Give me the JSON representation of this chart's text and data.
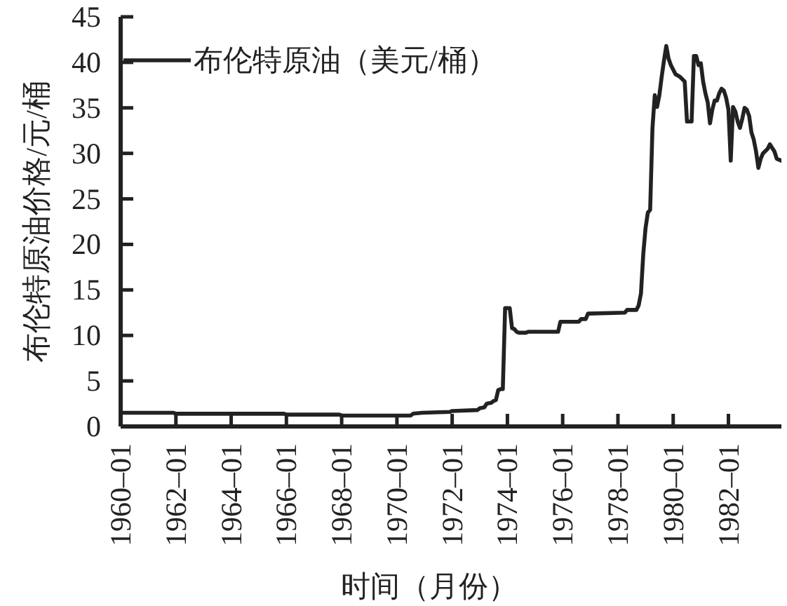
{
  "chart_data": {
    "type": "line",
    "xlabel": "时间（月份）",
    "ylabel": "布伦特原油价格/元/桶",
    "legend": "top left",
    "x": [
      "1960-01",
      "1961-12",
      "1962-01",
      "1965-12",
      "1966-01",
      "1967-12",
      "1968-01",
      "1970-07",
      "1970-08",
      "1970-12",
      "1971-12",
      "1972-01",
      "1972-12",
      "1973-01",
      "1973-03",
      "1973-04",
      "1973-06",
      "1973-07",
      "1973-08",
      "1973-09",
      "1973-10",
      "1973-11",
      "1973-12",
      "1974-01",
      "1974-02",
      "1974-03",
      "1974-04",
      "1974-05",
      "1974-06",
      "1974-09",
      "1974-10",
      "1975-11",
      "1975-12",
      "1976-08",
      "1976-09",
      "1976-11",
      "1976-12",
      "1978-04",
      "1978-05",
      "1978-09",
      "1978-10",
      "1978-11",
      "1978-12",
      "1979-01",
      "1979-02",
      "1979-03",
      "1979-04",
      "1979-05",
      "1979-06",
      "1979-07",
      "1979-08",
      "1979-09",
      "1979-10",
      "1979-11",
      "1979-12",
      "1980-02",
      "1980-04",
      "1980-06",
      "1980-07",
      "1980-09",
      "1980-10",
      "1980-11",
      "1980-12",
      "1981-01",
      "1981-02",
      "1981-03",
      "1981-04",
      "1981-05",
      "1981-06",
      "1981-07",
      "1981-08",
      "1981-09",
      "1981-10",
      "1981-11",
      "1981-12",
      "1982-01",
      "1982-02",
      "1982-03",
      "1982-04",
      "1982-05",
      "1982-06",
      "1982-07",
      "1982-08",
      "1982-09",
      "1982-10",
      "1982-11",
      "1982-12",
      "1983-01",
      "1983-02",
      "1983-03",
      "1983-04",
      "1983-06",
      "1983-07",
      "1983-09",
      "1983-10",
      "1983-12"
    ],
    "series": [
      {
        "name": "布伦特原油（美元/桶）",
        "color": "#222222",
        "values": [
          1.5,
          1.5,
          1.4,
          1.4,
          1.3,
          1.3,
          1.2,
          1.2,
          1.4,
          1.5,
          1.6,
          1.7,
          1.8,
          2.0,
          2.1,
          2.5,
          2.6,
          2.8,
          2.9,
          4.0,
          4.1,
          4.1,
          13.0,
          13.0,
          13.0,
          10.8,
          10.7,
          10.4,
          10.3,
          10.3,
          10.4,
          10.4,
          11.5,
          11.5,
          11.8,
          11.8,
          12.4,
          12.5,
          12.8,
          12.8,
          13.3,
          14.6,
          18.9,
          21.8,
          23.5,
          23.8,
          32.8,
          36.4,
          35.1,
          36.4,
          38.4,
          40.2,
          41.8,
          40.4,
          39.7,
          38.7,
          38.4,
          37.9,
          33.5,
          33.5,
          40.7,
          40.7,
          39.7,
          39.9,
          37.9,
          36.6,
          35.6,
          33.3,
          34.8,
          35.8,
          35.8,
          36.6,
          37.1,
          36.9,
          36.1,
          34.8,
          29.2,
          35.1,
          34.6,
          33.5,
          32.8,
          33.8,
          35.0,
          34.8,
          34.1,
          32.3,
          31.5,
          30.2,
          28.4,
          29.4,
          30.0,
          30.5,
          31.0,
          30.2,
          29.4,
          29.2
        ]
      }
    ],
    "xlim": [
      "1960-01",
      "1983-12"
    ],
    "xticks": [
      {
        "value": "1960-01",
        "label": "1960–01"
      },
      {
        "value": "1962-01",
        "label": "1962–01"
      },
      {
        "value": "1964-01",
        "label": "1964–01"
      },
      {
        "value": "1966-01",
        "label": "1966–01"
      },
      {
        "value": "1968-01",
        "label": "1968–01"
      },
      {
        "value": "1970-01",
        "label": "1970–01"
      },
      {
        "value": "1972-01",
        "label": "1972–01"
      },
      {
        "value": "1974-01",
        "label": "1974–01"
      },
      {
        "value": "1976-01",
        "label": "1976–01"
      },
      {
        "value": "1978-01",
        "label": "1978–01"
      },
      {
        "value": "1980-01",
        "label": "1980–01"
      },
      {
        "value": "1982-01",
        "label": "1982–01"
      }
    ],
    "ylim": [
      0,
      45
    ],
    "yticks": [
      0,
      5,
      10,
      15,
      20,
      25,
      30,
      35,
      40,
      45
    ]
  }
}
